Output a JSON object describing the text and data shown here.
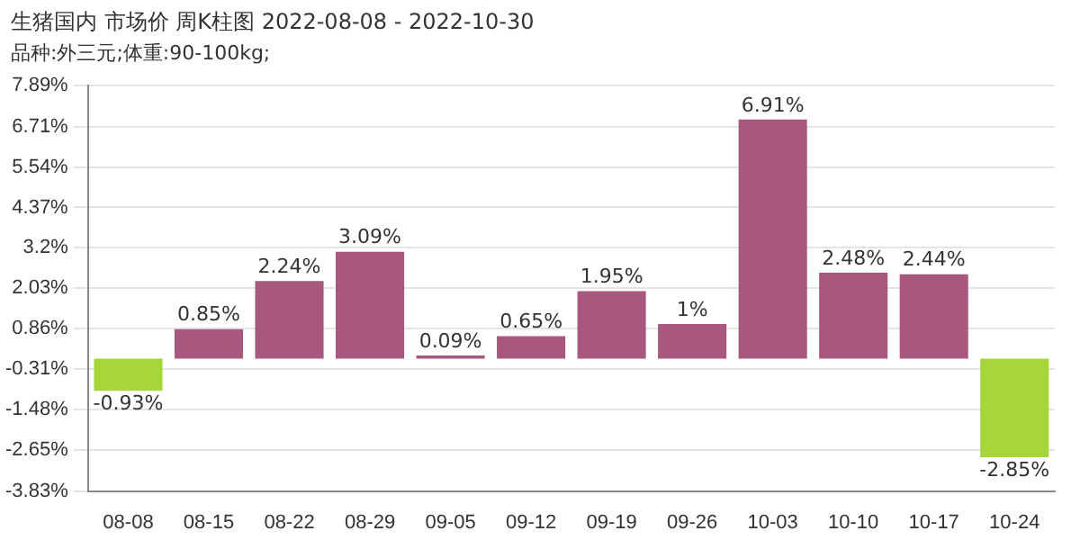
{
  "chart_data": {
    "type": "bar",
    "title": "生猪国内 市场价 周K柱图 2022-08-08 - 2022-10-30",
    "subtitle": "品种:外三元;体重:90-100kg;",
    "categories": [
      "08-08",
      "08-15",
      "08-22",
      "08-29",
      "09-05",
      "09-12",
      "09-19",
      "09-26",
      "10-03",
      "10-10",
      "10-17",
      "10-24"
    ],
    "values": [
      -0.93,
      0.85,
      2.24,
      3.09,
      0.09,
      0.65,
      1.95,
      1,
      6.91,
      2.48,
      2.44,
      -2.85
    ],
    "value_labels": [
      "-0.93%",
      "0.85%",
      "2.24%",
      "3.09%",
      "0.09%",
      "0.65%",
      "1.95%",
      "1%",
      "6.91%",
      "2.48%",
      "2.44%",
      "-2.85%"
    ],
    "colors": [
      "#a6d63a",
      "#a8587f",
      "#a8587f",
      "#a8587f",
      "#a8587f",
      "#a8587f",
      "#a8587f",
      "#a8587f",
      "#a8587f",
      "#a8587f",
      "#a8587f",
      "#a6d63a"
    ],
    "ylim": [
      -3.83,
      7.89
    ],
    "yticks": [
      {
        "value": 7.89,
        "label": "7.89%"
      },
      {
        "value": 6.71,
        "label": "6.71%"
      },
      {
        "value": 5.54,
        "label": "5.54%"
      },
      {
        "value": 4.37,
        "label": "4.37%"
      },
      {
        "value": 3.2,
        "label": "3.2%"
      },
      {
        "value": 2.03,
        "label": "2.03%"
      },
      {
        "value": 0.86,
        "label": "0.86%"
      },
      {
        "value": -0.31,
        "label": "-0.31%"
      },
      {
        "value": -1.48,
        "label": "-1.48%"
      },
      {
        "value": -2.65,
        "label": "-2.65%"
      },
      {
        "value": -3.83,
        "label": "-3.83%"
      }
    ],
    "grid": "y",
    "legend": false
  }
}
